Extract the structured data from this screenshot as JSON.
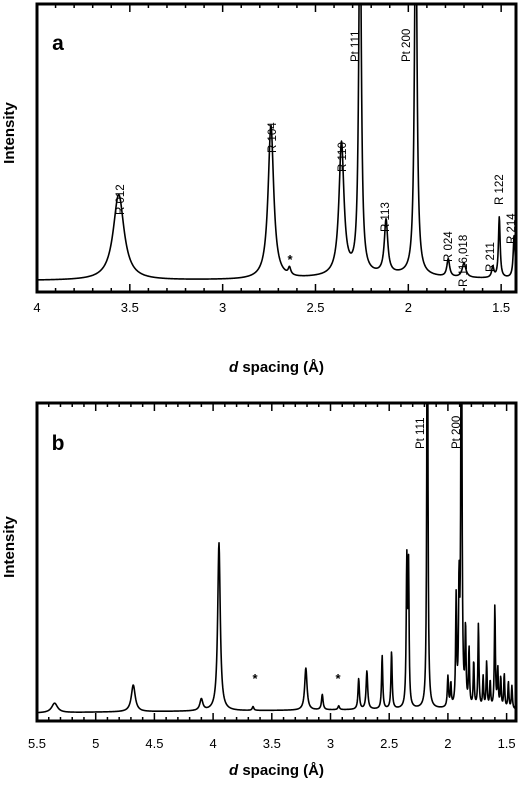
{
  "figure": {
    "panels": [
      {
        "panel_label": "a",
        "ylabel": "Intensity",
        "xlabel_italic": "d",
        "xlabel_rest": " spacing (Å)",
        "xtick_labels": [
          "4",
          "3.5",
          "3",
          "2.5",
          "2",
          "1.5"
        ],
        "peak_labels": [
          "R 012",
          "R 104",
          "R 110",
          "Pt 111",
          "R 113",
          "Pt 200",
          "R 024",
          "R 116,018",
          "R 211",
          "R 122",
          "R 214"
        ],
        "impurity_marks": [
          "*"
        ]
      },
      {
        "panel_label": "b",
        "ylabel": "Intensity",
        "xlabel_italic": "d",
        "xlabel_rest": " spacing (Å)",
        "xtick_labels": [
          "5.5",
          "5",
          "4.5",
          "4",
          "3.5",
          "3",
          "2.5",
          "2",
          "1.5"
        ],
        "peak_labels": [
          "Pt 111",
          "Pt 200"
        ],
        "impurity_marks": [
          "*",
          "*"
        ]
      }
    ]
  },
  "chart_data": [
    {
      "type": "line",
      "panel": "a",
      "xlabel": "d spacing (Å)",
      "ylabel": "Intensity",
      "x_reversed": true,
      "xlim": [
        4.0,
        1.42
      ],
      "ylim": [
        0,
        100
      ],
      "xticks": [
        4,
        3.5,
        3,
        2.5,
        2,
        1.5
      ],
      "baseline": [
        [
          4.0,
          3.0
        ],
        [
          3.3,
          3.5
        ],
        [
          2.9,
          4.2
        ],
        [
          2.6,
          6.0
        ],
        [
          2.45,
          9.0
        ],
        [
          2.3,
          12.5
        ],
        [
          2.2,
          13.0
        ],
        [
          2.0,
          13.5
        ],
        [
          1.9,
          11.0
        ],
        [
          1.8,
          8.0
        ],
        [
          1.6,
          7.0
        ],
        [
          1.42,
          7.5
        ]
      ],
      "peaks": [
        {
          "d": 3.56,
          "intensity": 24,
          "width": 0.035,
          "label": "R 012"
        },
        {
          "d": 2.74,
          "intensity": 43,
          "width": 0.018,
          "label": "R 104"
        },
        {
          "d": 2.64,
          "intensity": 2,
          "width": 0.008,
          "label": "*"
        },
        {
          "d": 2.36,
          "intensity": 37,
          "width": 0.016,
          "label": "R 110"
        },
        {
          "d": 2.26,
          "intensity": 110,
          "width": 0.008,
          "label": "Pt 111"
        },
        {
          "d": 2.12,
          "intensity": 15,
          "width": 0.011,
          "label": "R 113"
        },
        {
          "d": 1.96,
          "intensity": 110,
          "width": 0.008,
          "label": "Pt 200"
        },
        {
          "d": 1.785,
          "intensity": 5,
          "width": 0.009,
          "label": "R 024"
        },
        {
          "d": 1.7,
          "intensity": 4,
          "width": 0.012,
          "label": "R 116,018"
        },
        {
          "d": 1.545,
          "intensity": 3,
          "width": 0.007,
          "label": "R 211"
        },
        {
          "d": 1.51,
          "intensity": 17,
          "width": 0.0055,
          "label": "R 122"
        },
        {
          "d": 1.43,
          "intensity": 12,
          "width": 0.006,
          "label": "R 214"
        }
      ]
    },
    {
      "type": "line",
      "panel": "b",
      "xlabel": "d spacing (Å)",
      "ylabel": "Intensity",
      "x_reversed": true,
      "xlim": [
        5.5,
        1.42
      ],
      "ylim": [
        0,
        100
      ],
      "xticks": [
        5.5,
        5,
        4.5,
        4,
        3.5,
        3,
        2.5,
        2,
        1.5
      ],
      "baseline": [
        [
          5.5,
          0.0
        ],
        [
          5.0,
          1.5
        ],
        [
          4.5,
          2.5
        ],
        [
          4.0,
          3.5
        ],
        [
          3.5,
          4.5
        ],
        [
          3.0,
          5.5
        ],
        [
          2.5,
          6.5
        ],
        [
          2.0,
          7.0
        ],
        [
          1.42,
          6.0
        ]
      ],
      "peaks": [
        {
          "d": 5.35,
          "intensity": 2.5,
          "width": 0.03,
          "label": ""
        },
        {
          "d": 4.68,
          "intensity": 7,
          "width": 0.02,
          "label": ""
        },
        {
          "d": 4.1,
          "intensity": 3,
          "width": 0.015,
          "label": ""
        },
        {
          "d": 3.95,
          "intensity": 44,
          "width": 0.013,
          "label": ""
        },
        {
          "d": 3.66,
          "intensity": 1,
          "width": 0.008,
          "label": "*"
        },
        {
          "d": 3.21,
          "intensity": 11,
          "width": 0.012,
          "label": ""
        },
        {
          "d": 3.07,
          "intensity": 4,
          "width": 0.008,
          "label": ""
        },
        {
          "d": 2.93,
          "intensity": 1,
          "width": 0.008,
          "label": "*"
        },
        {
          "d": 2.76,
          "intensity": 8,
          "width": 0.007,
          "label": ""
        },
        {
          "d": 2.69,
          "intensity": 10,
          "width": 0.008,
          "label": ""
        },
        {
          "d": 2.56,
          "intensity": 14,
          "width": 0.006,
          "label": ""
        },
        {
          "d": 2.48,
          "intensity": 15,
          "width": 0.006,
          "label": ""
        },
        {
          "d": 2.35,
          "intensity": 38,
          "width": 0.006,
          "label": ""
        },
        {
          "d": 2.335,
          "intensity": 35,
          "width": 0.005,
          "label": ""
        },
        {
          "d": 2.175,
          "intensity": 140,
          "width": 0.005,
          "label": "Pt 111"
        },
        {
          "d": 2.0,
          "intensity": 8,
          "width": 0.006,
          "label": ""
        },
        {
          "d": 1.975,
          "intensity": 6,
          "width": 0.005,
          "label": ""
        },
        {
          "d": 1.93,
          "intensity": 28,
          "width": 0.005,
          "label": ""
        },
        {
          "d": 1.905,
          "intensity": 30,
          "width": 0.005,
          "label": ""
        },
        {
          "d": 1.885,
          "intensity": 140,
          "width": 0.005,
          "label": "Pt 200"
        },
        {
          "d": 1.85,
          "intensity": 20,
          "width": 0.005,
          "label": ""
        },
        {
          "d": 1.82,
          "intensity": 15,
          "width": 0.005,
          "label": ""
        },
        {
          "d": 1.78,
          "intensity": 12,
          "width": 0.005,
          "label": ""
        },
        {
          "d": 1.74,
          "intensity": 22,
          "width": 0.005,
          "label": ""
        },
        {
          "d": 1.7,
          "intensity": 8,
          "width": 0.005,
          "label": ""
        },
        {
          "d": 1.67,
          "intensity": 12,
          "width": 0.005,
          "label": ""
        },
        {
          "d": 1.64,
          "intensity": 7,
          "width": 0.005,
          "label": ""
        },
        {
          "d": 1.6,
          "intensity": 27,
          "width": 0.005,
          "label": ""
        },
        {
          "d": 1.575,
          "intensity": 10,
          "width": 0.005,
          "label": ""
        },
        {
          "d": 1.55,
          "intensity": 8,
          "width": 0.005,
          "label": ""
        },
        {
          "d": 1.52,
          "intensity": 9,
          "width": 0.005,
          "label": ""
        },
        {
          "d": 1.485,
          "intensity": 7,
          "width": 0.005,
          "label": ""
        },
        {
          "d": 1.455,
          "intensity": 6,
          "width": 0.005,
          "label": ""
        }
      ]
    }
  ]
}
